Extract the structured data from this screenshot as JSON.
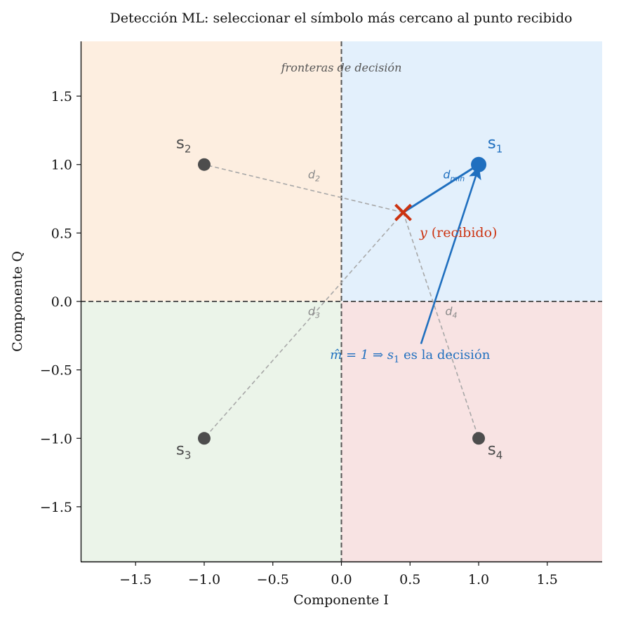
{
  "chart_data": {
    "type": "scatter",
    "title": "Detección ML: seleccionar el símbolo más cercano al punto recibido",
    "xlabel": "Componente I",
    "ylabel": "Componente Q",
    "xlim": [
      -1.9,
      1.9
    ],
    "ylim": [
      -1.9,
      1.9
    ],
    "xticks": [
      -1.5,
      -1.0,
      -0.5,
      0.0,
      0.5,
      1.0,
      1.5
    ],
    "yticks": [
      -1.5,
      -1.0,
      -0.5,
      0.0,
      0.5,
      1.0,
      1.5
    ],
    "xtick_labels": [
      "−1.5",
      "−1.0",
      "−0.5",
      "0.0",
      "0.5",
      "1.0",
      "1.5"
    ],
    "ytick_labels": [
      "−1.5",
      "−1.0",
      "−0.5",
      "0.0",
      "0.5",
      "1.0",
      "1.5"
    ],
    "grid": false,
    "decision_regions": [
      {
        "name": "s1",
        "x": [
          0,
          1.9
        ],
        "y": [
          0,
          1.9
        ],
        "color": "#e3f0fc"
      },
      {
        "name": "s2",
        "x": [
          -1.9,
          0
        ],
        "y": [
          0,
          1.9
        ],
        "color": "#fdeee0"
      },
      {
        "name": "s3",
        "x": [
          -1.9,
          0
        ],
        "y": [
          -1.9,
          0
        ],
        "color": "#ebf4e9"
      },
      {
        "name": "s4",
        "x": [
          0,
          1.9
        ],
        "y": [
          -1.9,
          0
        ],
        "color": "#f8e3e3"
      }
    ],
    "boundary_label": "fronteras de decisión",
    "boundary_label_pos": [
      0,
      1.68
    ],
    "symbols": [
      {
        "id": "s1",
        "base": "s",
        "sub": "1",
        "x": 1.0,
        "y": 1.0,
        "selected": true,
        "color": "#1f6fbf",
        "label_pos": [
          1.12,
          1.12
        ]
      },
      {
        "id": "s2",
        "base": "s",
        "sub": "2",
        "x": -1.0,
        "y": 1.0,
        "selected": false,
        "color": "#4d4d4d",
        "label_pos": [
          -1.15,
          1.12
        ]
      },
      {
        "id": "s3",
        "base": "s",
        "sub": "3",
        "x": -1.0,
        "y": -1.0,
        "selected": false,
        "color": "#4d4d4d",
        "label_pos": [
          -1.15,
          -1.12
        ]
      },
      {
        "id": "s4",
        "base": "s",
        "sub": "4",
        "x": 1.0,
        "y": -1.0,
        "selected": false,
        "color": "#4d4d4d",
        "label_pos": [
          1.12,
          -1.12
        ]
      }
    ],
    "received": {
      "x": 0.45,
      "y": 0.65,
      "label_var": "y",
      "label_text": " (recibido)",
      "color": "#cc3311",
      "label_pos": [
        0.57,
        0.47
      ]
    },
    "distances": [
      {
        "to": "s1",
        "base": "d",
        "sub": "min",
        "label_pos": [
          0.82,
          0.9
        ],
        "color": "#1f6fbf",
        "min": true
      },
      {
        "to": "s2",
        "base": "d",
        "sub": "2",
        "label_pos": [
          -0.2,
          0.9
        ],
        "color": "#8a8a8a",
        "min": false
      },
      {
        "to": "s3",
        "base": "d",
        "sub": "3",
        "label_pos": [
          -0.2,
          -0.1
        ],
        "color": "#8a8a8a",
        "min": false
      },
      {
        "to": "s4",
        "base": "d",
        "sub": "4",
        "label_pos": [
          0.8,
          -0.1
        ],
        "color": "#8a8a8a",
        "min": false
      }
    ],
    "decision_annotation": {
      "prefix": "m̂ = 1 ⇒ ",
      "sym_base": "s",
      "sym_sub": "1",
      "suffix": " es la decisión",
      "text_pos": [
        0.5,
        -0.42
      ],
      "arrow_from": [
        0.58,
        -0.31
      ],
      "arrow_to": [
        1.0,
        1.0
      ],
      "color": "#1f6fbf"
    }
  }
}
